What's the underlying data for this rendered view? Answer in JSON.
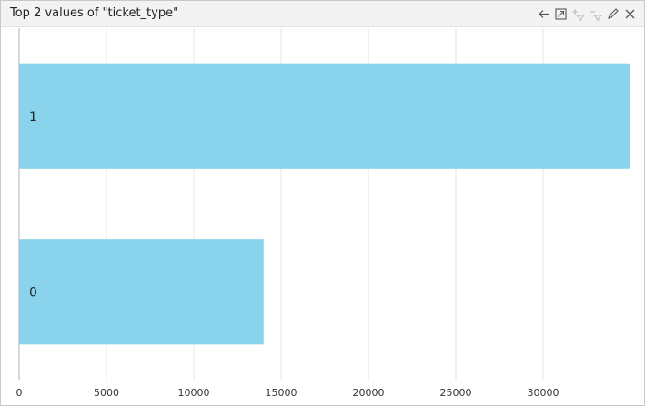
{
  "panel": {
    "title": "Top 2 values of \"ticket_type\"",
    "toolbar": [
      {
        "icon": "arrow-left-icon",
        "enabled": true
      },
      {
        "icon": "maximize-icon",
        "enabled": true
      },
      {
        "icon": "filter-add-icon",
        "enabled": false
      },
      {
        "icon": "filter-remove-icon",
        "enabled": false
      },
      {
        "icon": "edit-icon",
        "enabled": true
      },
      {
        "icon": "close-icon",
        "enabled": true
      }
    ]
  },
  "colors": {
    "bar": "#89d4ec",
    "grid": "#e6e6e6",
    "axis": "#b0b0b0"
  },
  "chart_data": {
    "type": "bar",
    "orientation": "horizontal",
    "categories": [
      "1",
      "0"
    ],
    "values": [
      35000,
      14000
    ],
    "xlim": [
      0,
      35000
    ],
    "xticks": [
      0,
      5000,
      10000,
      15000,
      20000,
      25000,
      30000
    ],
    "xtick_labels": [
      "0",
      "5000",
      "10000",
      "15000",
      "20000",
      "25000",
      "30000"
    ],
    "grid": true
  }
}
